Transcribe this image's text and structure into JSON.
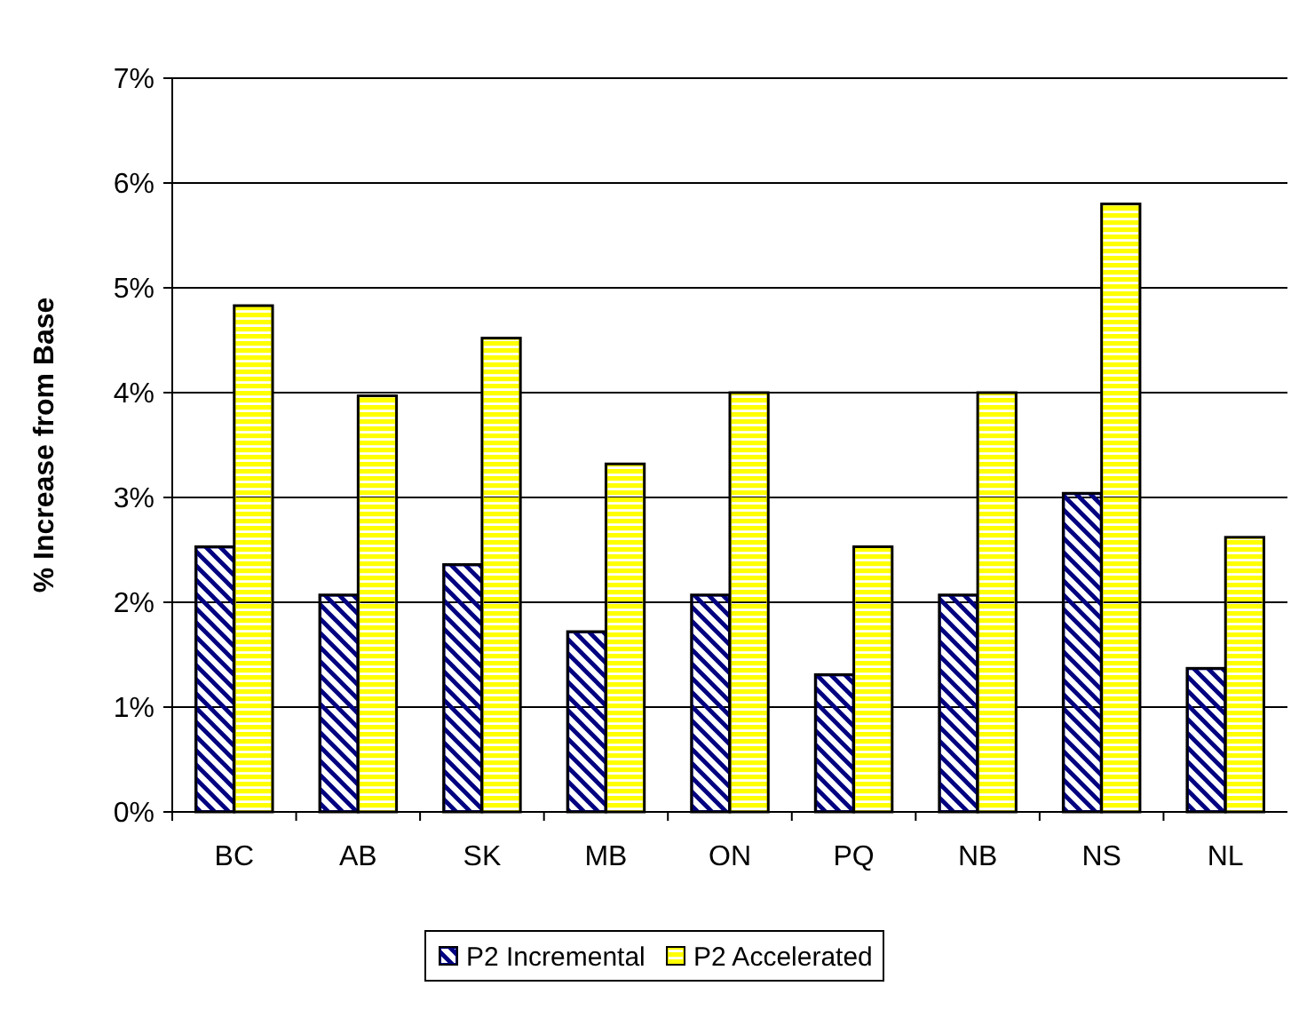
{
  "chart_data": {
    "type": "bar",
    "ylabel": "% Increase from Base",
    "categories": [
      "BC",
      "AB",
      "SK",
      "MB",
      "ON",
      "PQ",
      "NB",
      "NS",
      "NL"
    ],
    "series": [
      {
        "name": "P2 Incremental",
        "color": "#000080",
        "values": [
          2.53,
          2.07,
          2.36,
          1.72,
          2.07,
          1.31,
          2.07,
          3.04,
          1.37
        ]
      },
      {
        "name": "P2 Accelerated",
        "color": "#ffff00",
        "values": [
          4.83,
          3.97,
          4.52,
          3.32,
          4.0,
          2.53,
          4.0,
          5.8,
          2.62
        ]
      }
    ],
    "ylim": [
      0,
      7
    ],
    "yticks": [
      {
        "value": 0,
        "label": "0%"
      },
      {
        "value": 1,
        "label": "1%"
      },
      {
        "value": 2,
        "label": "2%"
      },
      {
        "value": 3,
        "label": "3%"
      },
      {
        "value": 4,
        "label": "4%"
      },
      {
        "value": 5,
        "label": "5%"
      },
      {
        "value": 6,
        "label": "6%"
      },
      {
        "value": 7,
        "label": "7%"
      }
    ],
    "grid": "y",
    "legend": "bottom"
  }
}
